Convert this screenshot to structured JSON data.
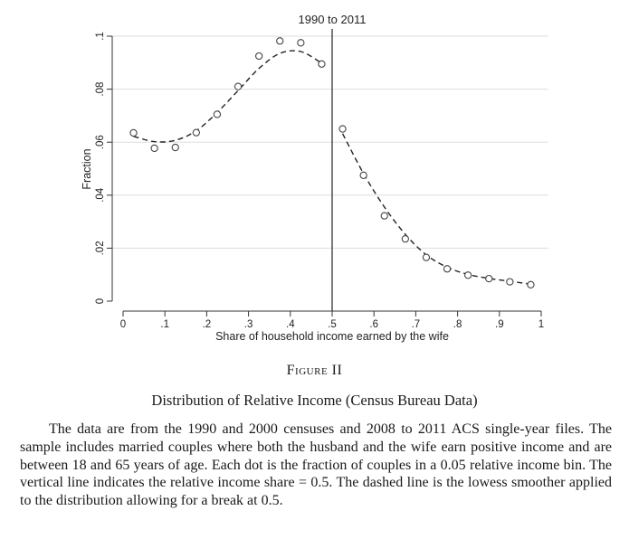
{
  "chart_data": {
    "type": "scatter",
    "title": "1990 to 2011",
    "xlabel": "Share of household income earned by the wife",
    "ylabel": "Fraction",
    "xlim": [
      0,
      1
    ],
    "ylim": [
      0,
      0.1
    ],
    "x_ticks": [
      "0",
      ".1",
      ".2",
      ".3",
      ".4",
      ".5",
      ".6",
      ".7",
      ".8",
      ".9",
      "1"
    ],
    "y_ticks": [
      "0",
      ".02",
      ".04",
      ".06",
      ".08",
      ".1"
    ],
    "grid": "horizontal",
    "vertical_line_x": 0.5,
    "points": {
      "x": [
        0.025,
        0.075,
        0.125,
        0.175,
        0.225,
        0.275,
        0.325,
        0.375,
        0.425,
        0.475,
        0.525,
        0.575,
        0.625,
        0.675,
        0.725,
        0.775,
        0.825,
        0.875,
        0.925,
        0.975
      ],
      "y": [
        0.0635,
        0.0577,
        0.058,
        0.0636,
        0.0705,
        0.081,
        0.0925,
        0.0982,
        0.0975,
        0.0895,
        0.065,
        0.0475,
        0.0322,
        0.0235,
        0.0165,
        0.0122,
        0.0098,
        0.0085,
        0.0073,
        0.0062
      ]
    },
    "smoother_left": {
      "x": [
        0.025,
        0.075,
        0.125,
        0.175,
        0.225,
        0.275,
        0.325,
        0.375,
        0.425,
        0.475
      ],
      "y": [
        0.0622,
        0.0602,
        0.0607,
        0.0643,
        0.0712,
        0.0795,
        0.0878,
        0.0935,
        0.0942,
        0.0898
      ]
    },
    "smoother_right": {
      "x": [
        0.525,
        0.575,
        0.625,
        0.675,
        0.725,
        0.775,
        0.825,
        0.875,
        0.925,
        0.975
      ],
      "y": [
        0.0632,
        0.0482,
        0.0355,
        0.0252,
        0.0175,
        0.0128,
        0.0101,
        0.0086,
        0.0075,
        0.0064
      ]
    }
  },
  "caption": {
    "figure_label": "Figure II",
    "title": "Distribution of Relative Income (Census Bureau Data)",
    "note": "The data are from the 1990 and 2000 censuses and 2008 to 2011 ACS single-year files. The sample includes married couples where both the husband and the wife earn positive income and are between 18 and 65 years of age. Each dot is the fraction of couples in a 0.05 relative income bin. The vertical line indicates the relative income share = 0.5. The dashed line is the lowess smoother applied to the distribution allowing for a break at 0.5."
  }
}
